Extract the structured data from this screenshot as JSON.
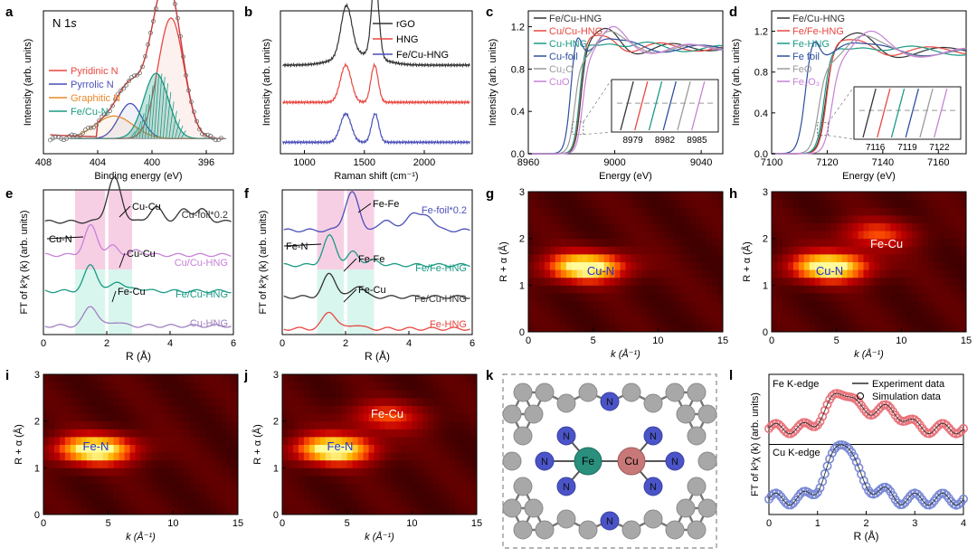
{
  "figure": {
    "panels": [
      {
        "letter": "a"
      },
      {
        "letter": "b"
      },
      {
        "letter": "c"
      },
      {
        "letter": "d"
      },
      {
        "letter": "e"
      },
      {
        "letter": "f"
      },
      {
        "letter": "g"
      },
      {
        "letter": "h"
      },
      {
        "letter": "i"
      },
      {
        "letter": "j"
      },
      {
        "letter": "k"
      },
      {
        "letter": "l"
      }
    ]
  },
  "chart_data": [
    {
      "panel": "a",
      "type": "line",
      "title": "N 1s",
      "xlabel": "Binding energy (eV)",
      "ylabel": "Intensity (arb. units)",
      "xlim": [
        408,
        394
      ],
      "xticks": [
        "408",
        "404",
        "400",
        "396"
      ],
      "legend": [
        "Pyridinic N",
        "Pyrrolic N",
        "Graphitic N",
        "Fe/Cu-N"
      ],
      "colors": {
        "Pyridinic N": "#e8473f",
        "Pyrrolic N": "#4a4fb8",
        "Graphitic N": "#e8892a",
        "Fe/Cu-N": "#1a9a84",
        "Experiment": "#6b6b6b",
        "Fit": "#c83a3a"
      },
      "peaks": [
        {
          "name": "Pyridinic N",
          "center": 398.6,
          "amplitude": 0.96,
          "width": 0.95
        },
        {
          "name": "Pyrrolic N",
          "center": 401.6,
          "amplitude": 0.28,
          "width": 0.85
        },
        {
          "name": "Graphitic N",
          "center": 402.8,
          "amplitude": 0.18,
          "width": 1.4
        },
        {
          "name": "Fe/Cu-N",
          "center": 399.7,
          "amplitude": 0.52,
          "width": 0.9
        }
      ],
      "baseline": 0.12
    },
    {
      "panel": "b",
      "type": "line",
      "xlabel": "Raman shift (cm⁻¹)",
      "ylabel": "Intensity (arb. units)",
      "xlim": [
        800,
        2400
      ],
      "xticks": [
        "1000",
        "1500",
        "2000"
      ],
      "series": [
        {
          "name": "rGO",
          "color": "#333333",
          "D": 1350,
          "G": 1590,
          "D_height": 0.35,
          "G_height": 0.55,
          "offset": 0.62
        },
        {
          "name": "HNG",
          "color": "#e8473f",
          "D": 1345,
          "G": 1585,
          "D_height": 0.26,
          "G_height": 0.26,
          "offset": 0.36
        },
        {
          "name": "Fe/Cu-HNG",
          "color": "#4a4fb8",
          "D": 1345,
          "G": 1590,
          "D_height": 0.2,
          "G_height": 0.2,
          "offset": 0.08
        }
      ]
    },
    {
      "panel": "c",
      "type": "line",
      "xlabel": "Energy (eV)",
      "ylabel": "Intensity (arb. units)",
      "xlim": [
        8960,
        9050
      ],
      "ylim": [
        0,
        1.35
      ],
      "xticks": [
        "8960",
        "9000",
        "9040"
      ],
      "yticks": [
        "0.0",
        "0.4",
        "0.8",
        "1.2"
      ],
      "series": [
        {
          "name": "Fe/Cu-HNG",
          "color": "#333333",
          "edge": 8984.2
        },
        {
          "name": "Cu/Cu-HNG",
          "color": "#e8473f",
          "edge": 8984.0
        },
        {
          "name": "Cu-HNG",
          "color": "#1a9a84",
          "edge": 8983.8
        },
        {
          "name": "Cu-foil",
          "color": "#2d4f9e",
          "edge": 8979.5
        },
        {
          "name": "Cu₂O",
          "color": "#9a9a9a",
          "edge": 8981.5
        },
        {
          "name": "CuO",
          "color": "#c781d6",
          "edge": 8985.0
        }
      ],
      "inset": {
        "xticks": [
          "8979",
          "8982",
          "8985"
        ]
      }
    },
    {
      "panel": "d",
      "type": "line",
      "xlabel": "Energy (eV)",
      "ylabel": "Intensity (arb. units)",
      "xlim": [
        7100,
        7170
      ],
      "ylim": [
        0,
        1.4
      ],
      "xticks": [
        "7100",
        "7120",
        "7140",
        "7160"
      ],
      "yticks": [
        "0.0",
        "0.4",
        "0.8",
        "1.2"
      ],
      "series": [
        {
          "name": "Fe/Cu-HNG",
          "color": "#333333",
          "edge": 7119.3
        },
        {
          "name": "Fe/Fe-HNG",
          "color": "#e8473f",
          "edge": 7119.8
        },
        {
          "name": "Fe-HNG",
          "color": "#1a9a84",
          "edge": 7119.0
        },
        {
          "name": "Fe foil",
          "color": "#2d4f9e",
          "edge": 7112.0
        },
        {
          "name": "FeO",
          "color": "#9a9a9a",
          "edge": 7117.0
        },
        {
          "name": "Fe₂O₃",
          "color": "#c781d6",
          "edge": 7121.5
        }
      ],
      "inset": {
        "xticks": [
          "7116",
          "7119",
          "7122"
        ]
      }
    },
    {
      "panel": "e",
      "type": "line",
      "xlabel": "R (Å)",
      "ylabel": "FT of k³χ (k) (arb. units)",
      "xlim": [
        0,
        6
      ],
      "xticks": [
        "0",
        "2",
        "4",
        "6"
      ],
      "series": [
        {
          "name": "Cu-foil*0.2",
          "color": "#333333",
          "offset": 0.78,
          "peaks": [
            [
              2.24,
              0.3,
              0.22
            ],
            [
              3.55,
              0.1,
              0.2
            ],
            [
              4.45,
              0.08,
              0.2
            ],
            [
              5.0,
              0.08,
              0.2
            ]
          ]
        },
        {
          "name": "Cu/Cu-HNG",
          "color": "#c781d6",
          "offset": 0.55,
          "peaks": [
            [
              1.5,
              0.2,
              0.2
            ],
            [
              2.2,
              0.06,
              0.18
            ],
            [
              3.0,
              0.03,
              0.2
            ]
          ]
        },
        {
          "name": "Fe/Cu-HNG",
          "color": "#1a9a84",
          "offset": 0.3,
          "peaks": [
            [
              1.5,
              0.18,
              0.2
            ],
            [
              2.35,
              0.07,
              0.18
            ],
            [
              3.0,
              0.02,
              0.2
            ]
          ]
        },
        {
          "name": "Cu-HNG",
          "color": "#a080c0",
          "offset": 0.06,
          "peaks": [
            [
              1.5,
              0.14,
              0.2
            ],
            [
              2.3,
              0.03,
              0.18
            ]
          ]
        }
      ],
      "annotations": [
        "Cu-Cu",
        "Cu-N",
        "Cu-Cu",
        "Fe-Cu"
      ],
      "shaded": [
        {
          "from": 1.0,
          "to": 1.95,
          "color": "#f0a8d0"
        },
        {
          "from": 2.05,
          "to": 2.8,
          "color": "#f0a8d0"
        }
      ]
    },
    {
      "panel": "f",
      "type": "line",
      "xlabel": "R (Å)",
      "ylabel": "FT of k³χ (k) (arb. units)",
      "xlim": [
        0,
        6
      ],
      "xticks": [
        "0",
        "2",
        "4",
        "6"
      ],
      "series": [
        {
          "name": "Fe-foil*0.2",
          "color": "#4a4fb8",
          "offset": 0.72,
          "peaks": [
            [
              2.2,
              0.26,
              0.22
            ],
            [
              3.3,
              0.08,
              0.18
            ],
            [
              4.1,
              0.12,
              0.2
            ],
            [
              4.6,
              0.1,
              0.2
            ]
          ]
        },
        {
          "name": "Fe/Fe-HNG",
          "color": "#1a9a84",
          "offset": 0.48,
          "peaks": [
            [
              1.5,
              0.2,
              0.2
            ],
            [
              2.25,
              0.09,
              0.18
            ],
            [
              2.9,
              0.03,
              0.2
            ]
          ]
        },
        {
          "name": "Fe/Cu-HNG",
          "color": "#333333",
          "offset": 0.26,
          "peaks": [
            [
              1.5,
              0.16,
              0.2
            ],
            [
              2.4,
              0.08,
              0.18
            ]
          ]
        },
        {
          "name": "Fe-HNG",
          "color": "#e8473f",
          "offset": 0.04,
          "peaks": [
            [
              1.5,
              0.12,
              0.2
            ],
            [
              2.3,
              0.03,
              0.18
            ]
          ]
        }
      ],
      "annotations": [
        "Fe-Fe",
        "Fe-N",
        "Fe-Fe",
        "Fe-Cu"
      ],
      "shaded": [
        {
          "from": 1.1,
          "to": 1.95,
          "color": "#f0a8d0"
        },
        {
          "from": 2.05,
          "to": 2.9,
          "color": "#f0a8d0"
        }
      ]
    },
    {
      "panel": "g",
      "type": "heatmap",
      "xlabel": "k (Å⁻¹)",
      "ylabel": "R + α (Å)",
      "xlim": [
        0,
        15
      ],
      "ylim": [
        0,
        3
      ],
      "xticks": [
        "0",
        "5",
        "10",
        "15"
      ],
      "yticks": [
        "0",
        "1",
        "2",
        "3"
      ],
      "labels": [
        "Cu-N"
      ],
      "hotspots": [
        {
          "k": 4.5,
          "r": 1.4,
          "intensity": 1.0
        }
      ]
    },
    {
      "panel": "h",
      "type": "heatmap",
      "xlabel": "k (Å⁻¹)",
      "ylabel": "R + α (Å)",
      "xlim": [
        0,
        15
      ],
      "ylim": [
        0,
        3
      ],
      "xticks": [
        "0",
        "5",
        "10",
        "15"
      ],
      "yticks": [
        "0",
        "1",
        "2",
        "3"
      ],
      "labels": [
        "Fe-Cu",
        "Cu-N"
      ],
      "hotspots": [
        {
          "k": 4.5,
          "r": 1.4,
          "intensity": 1.0
        },
        {
          "k": 8.0,
          "r": 2.1,
          "intensity": 0.45
        }
      ]
    },
    {
      "panel": "i",
      "type": "heatmap",
      "xlabel": "k (Å⁻¹)",
      "ylabel": "R + α (Å)",
      "xlim": [
        0,
        15
      ],
      "ylim": [
        0,
        3
      ],
      "xticks": [
        "0",
        "5",
        "10",
        "15"
      ],
      "yticks": [
        "0",
        "1",
        "2",
        "3"
      ],
      "labels": [
        "Fe-N"
      ],
      "hotspots": [
        {
          "k": 4.0,
          "r": 1.4,
          "intensity": 1.0
        }
      ]
    },
    {
      "panel": "j",
      "type": "heatmap",
      "xlabel": "k (Å⁻¹)",
      "ylabel": "R + α (Å)",
      "xlim": [
        0,
        15
      ],
      "ylim": [
        0,
        3
      ],
      "xticks": [
        "0",
        "5",
        "10",
        "15"
      ],
      "yticks": [
        "0",
        "1",
        "2",
        "3"
      ],
      "labels": [
        "Fe-Cu",
        "Fe-N"
      ],
      "hotspots": [
        {
          "k": 4.0,
          "r": 1.4,
          "intensity": 1.0
        },
        {
          "k": 8.0,
          "r": 2.1,
          "intensity": 0.45
        }
      ]
    },
    {
      "panel": "l",
      "type": "line",
      "xlabel": "R (Å)",
      "ylabel": "FT of k³χ (k) (arb. units)",
      "xlim": [
        0,
        4
      ],
      "xticks": [
        "0",
        "1",
        "2",
        "3",
        "4"
      ],
      "legend": [
        "Experiment data",
        "Simulation data"
      ],
      "subpanels": [
        {
          "name": "Fe K-edge",
          "color": "#e8737a",
          "peaks": [
            [
              1.25,
              0.35,
              0.22
            ],
            [
              1.6,
              0.75,
              0.22
            ],
            [
              2.25,
              0.45,
              0.22
            ],
            [
              2.7,
              0.25,
              0.2
            ]
          ]
        },
        {
          "name": "Cu K-edge",
          "color": "#7a8ad6",
          "peaks": [
            [
              1.3,
              0.5,
              0.25
            ],
            [
              1.6,
              0.9,
              0.2
            ],
            [
              2.2,
              0.2,
              0.2
            ]
          ]
        }
      ]
    }
  ],
  "structure": {
    "panel": "k",
    "atoms": [
      {
        "label": "N"
      },
      {
        "label": "N"
      },
      {
        "label": "N"
      },
      {
        "label": "N"
      },
      {
        "label": "N"
      },
      {
        "label": "N"
      },
      {
        "label": "N"
      },
      {
        "label": "N"
      },
      {
        "label": "Fe"
      },
      {
        "label": "Cu"
      }
    ]
  }
}
